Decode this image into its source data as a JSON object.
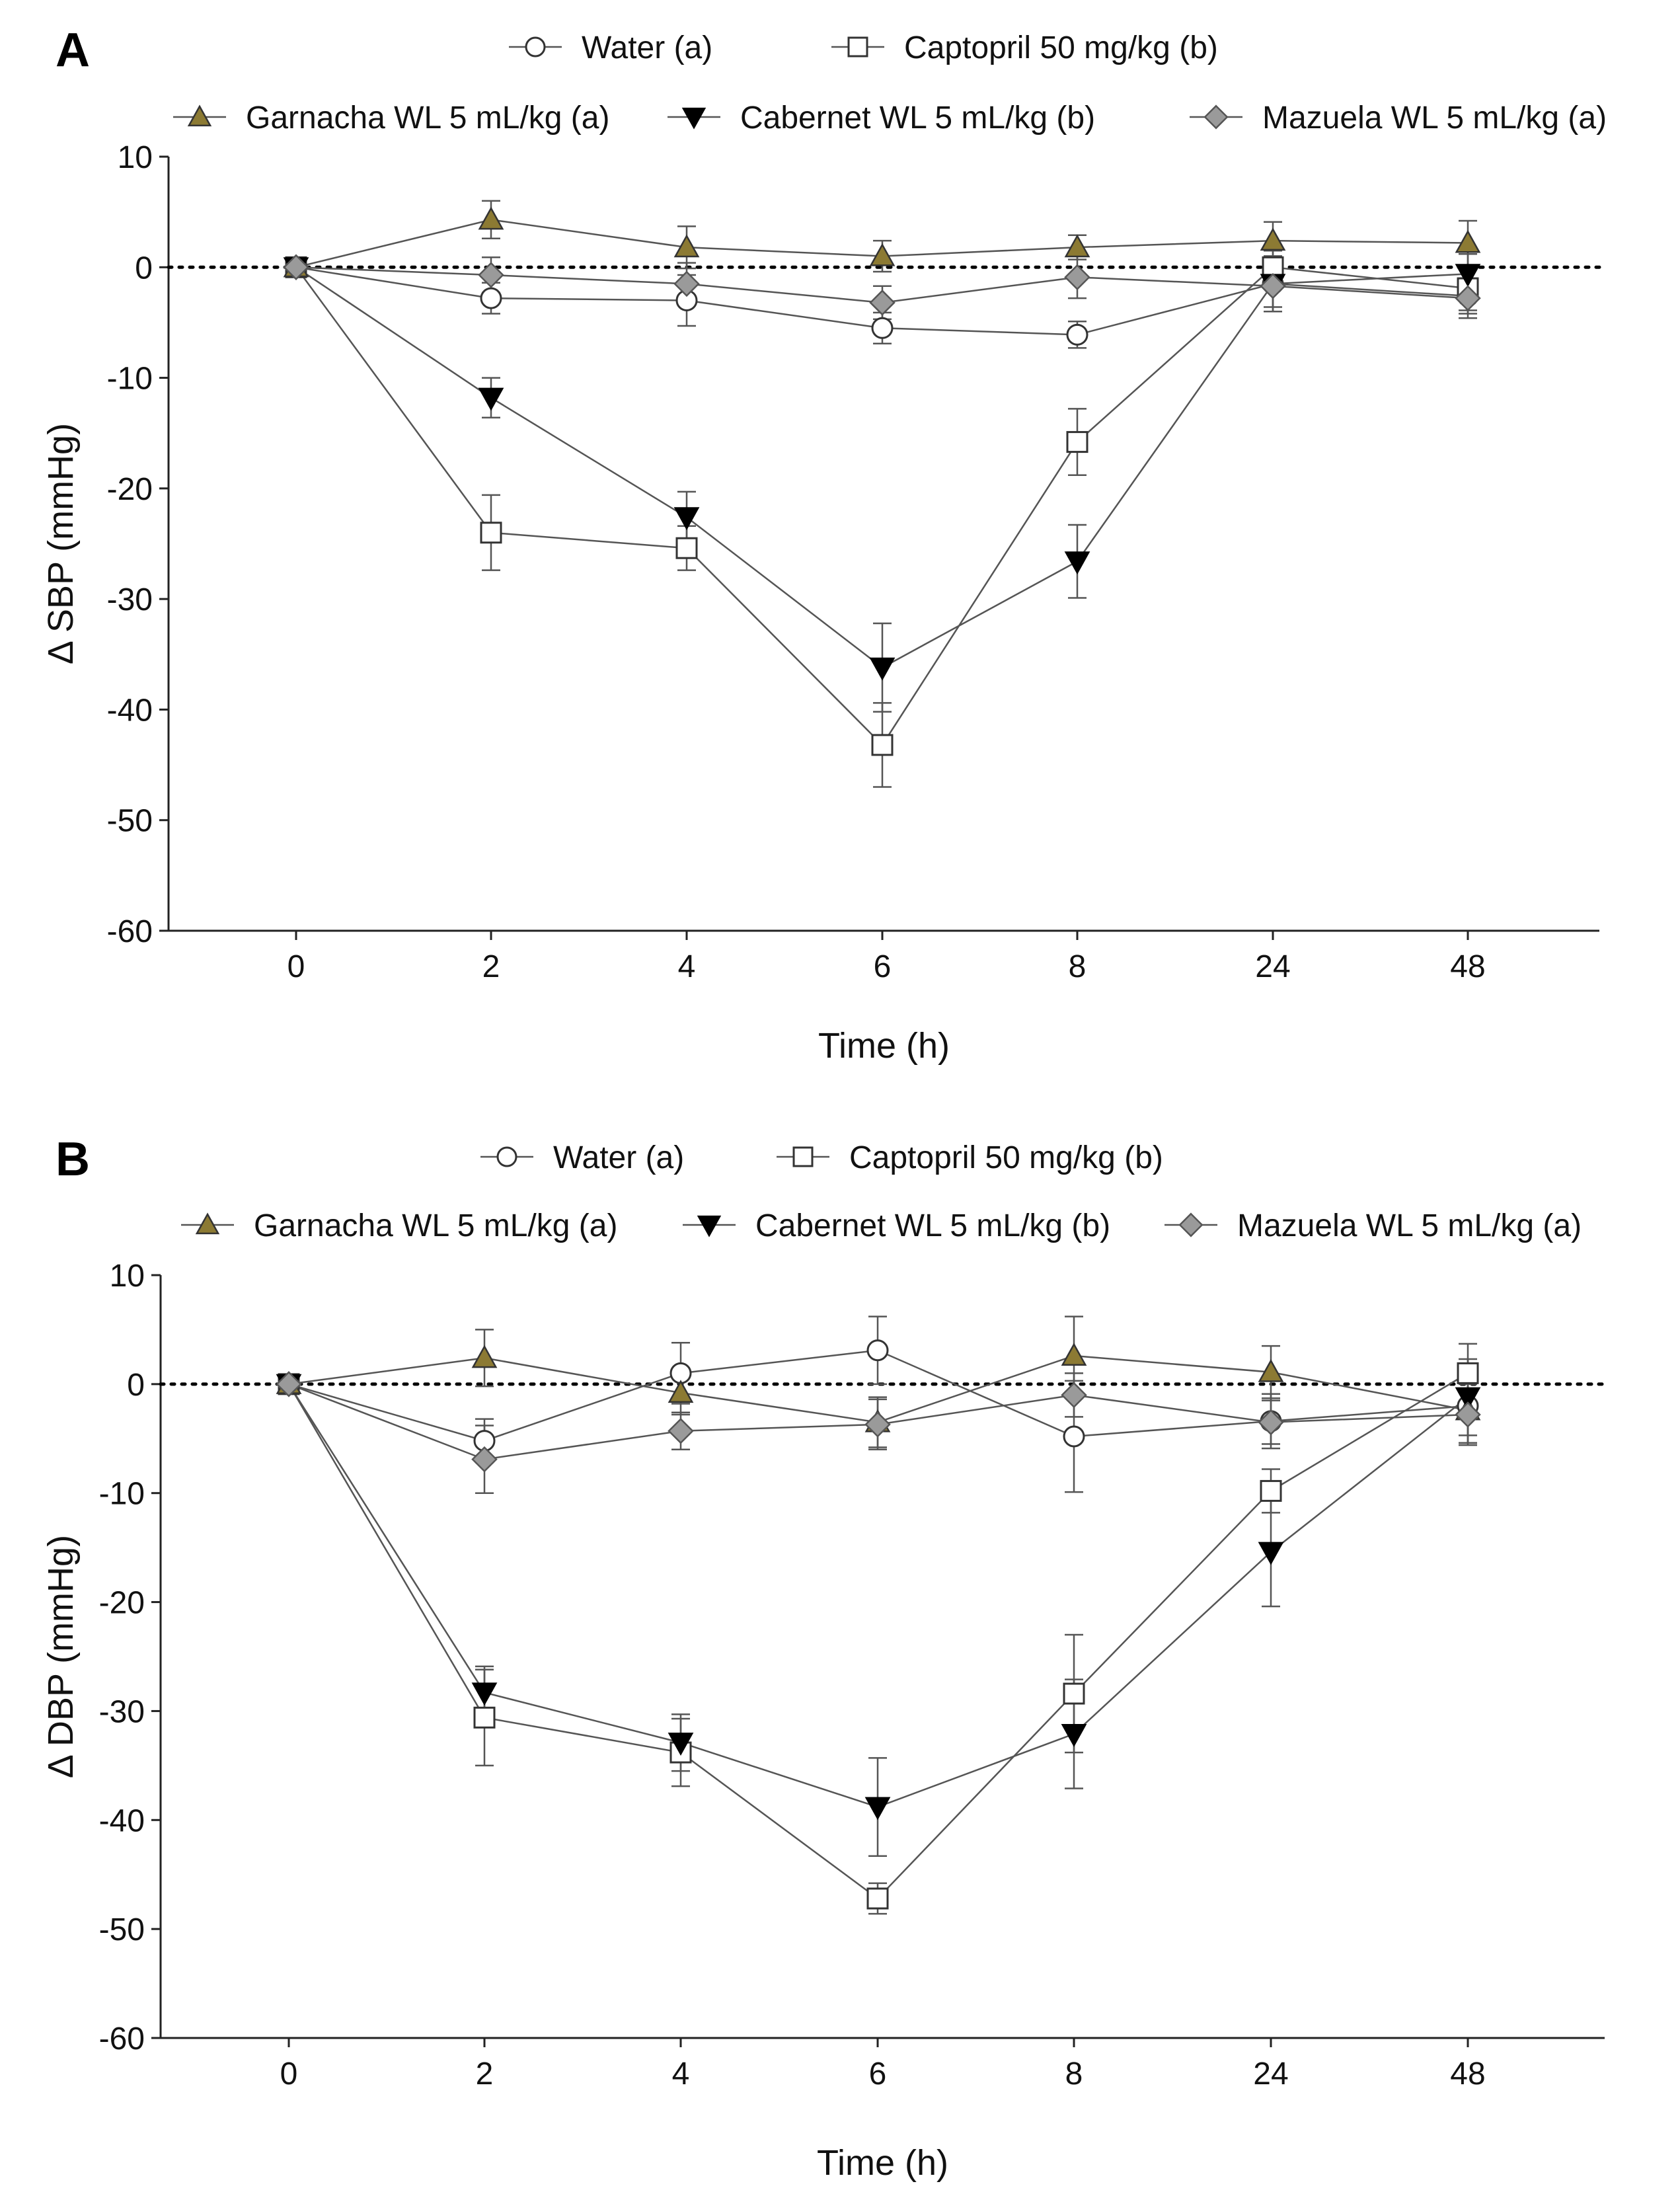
{
  "chart_data": [
    {
      "type": "line",
      "panel_label": "A",
      "title": "",
      "xlabel": "Time (h)",
      "ylabel": "Δ SBP (mmHg)",
      "categories": [
        "0",
        "2",
        "4",
        "6",
        "8",
        "24",
        "48"
      ],
      "ylim": [
        -60,
        10
      ],
      "yticks": [
        10,
        0,
        -10,
        -20,
        -30,
        -40,
        -50,
        -60
      ],
      "ytick_labels": [
        "10",
        "0",
        "-10",
        "-20",
        "-30",
        "-40",
        "-50",
        "-60"
      ],
      "reference_line": 0,
      "grid": false,
      "legend_position": "top",
      "series": [
        {
          "name": "Water (a)",
          "marker": "circle-open",
          "values": [
            0,
            -2.8,
            -3.0,
            -5.5,
            -6.1,
            -1.5,
            -2.6
          ],
          "errors": [
            0.3,
            1.4,
            2.3,
            1.4,
            1.2,
            2.5,
            1.6
          ]
        },
        {
          "name": "Captopril 50 mg/kg (b)",
          "marker": "square-open",
          "values": [
            0,
            -24,
            -25.4,
            -43.2,
            -15.8,
            0,
            -1.9
          ],
          "errors": [
            0.3,
            3.4,
            2.0,
            3.8,
            3.0,
            1.5,
            2.0
          ]
        },
        {
          "name": "Garnacha WL 5 mL/kg (a)",
          "marker": "triangle-up",
          "values": [
            0,
            4.3,
            1.8,
            1.0,
            1.8,
            2.4,
            2.2
          ],
          "errors": [
            0.3,
            1.7,
            1.9,
            1.4,
            1.1,
            1.7,
            2.0
          ]
        },
        {
          "name": "Cabernet WL 5 mL/kg (b)",
          "marker": "triangle-down",
          "values": [
            0,
            -11.8,
            -22.6,
            -36.2,
            -26.6,
            -1.5,
            -0.6
          ],
          "errors": [
            0.3,
            1.8,
            2.3,
            4.0,
            3.3,
            2.5,
            1.8
          ]
        },
        {
          "name": "Mazuela WL 5 mL/kg (a)",
          "marker": "diamond",
          "values": [
            0,
            -0.7,
            -1.5,
            -3.2,
            -0.9,
            -1.7,
            -2.8
          ],
          "errors": [
            0.3,
            1.6,
            1.9,
            1.5,
            1.9,
            1.9,
            1.8
          ]
        }
      ]
    },
    {
      "type": "line",
      "panel_label": "B",
      "title": "",
      "xlabel": "Time (h)",
      "ylabel": "Δ DBP (mmHg)",
      "categories": [
        "0",
        "2",
        "4",
        "6",
        "8",
        "24",
        "48"
      ],
      "ylim": [
        -60,
        10
      ],
      "yticks": [
        10,
        0,
        -10,
        -20,
        -30,
        -40,
        -50,
        -60
      ],
      "ytick_labels": [
        "10",
        "0",
        "-10",
        "-20",
        "-30",
        "-40",
        "-50",
        "-60"
      ],
      "reference_line": 0,
      "grid": false,
      "legend_position": "top",
      "series": [
        {
          "name": "Water (a)",
          "marker": "circle-open",
          "values": [
            0,
            -5.2,
            1.0,
            3.1,
            -4.8,
            -3.4,
            -2.0
          ],
          "errors": [
            0.3,
            2.0,
            2.8,
            3.1,
            5.1,
            2.5,
            3.4
          ]
        },
        {
          "name": "Captopril 50 mg/kg (b)",
          "marker": "square-open",
          "values": [
            0,
            -30.6,
            -33.8,
            -47.2,
            -28.4,
            -9.8,
            1.0
          ],
          "errors": [
            0.3,
            4.4,
            3.1,
            1.4,
            5.4,
            2.0,
            2.7
          ]
        },
        {
          "name": "Garnacha WL 5 mL/kg (a)",
          "marker": "triangle-up",
          "values": [
            0,
            2.4,
            -0.8,
            -3.5,
            2.6,
            1.1,
            -2.4
          ],
          "errors": [
            0.3,
            2.6,
            2.0,
            2.3,
            3.6,
            2.4,
            3.0
          ]
        },
        {
          "name": "Cabernet WL 5 mL/kg (b)",
          "marker": "triangle-down",
          "values": [
            0,
            -28.3,
            -32.9,
            -38.8,
            -32.1,
            -15.4,
            -1.2
          ],
          "errors": [
            0.3,
            2.4,
            2.6,
            4.5,
            5.0,
            5.0,
            3.5
          ]
        },
        {
          "name": "Mazuela WL 5 mL/kg (a)",
          "marker": "diamond",
          "values": [
            0,
            -6.9,
            -4.3,
            -3.7,
            -1.0,
            -3.5,
            -2.8
          ],
          "errors": [
            0.3,
            3.1,
            1.7,
            2.3,
            2.0,
            2.0,
            2.8
          ]
        }
      ]
    }
  ],
  "style": {
    "line_color": "#555555",
    "errorbar_color": "#555555",
    "axis_color": "#222222",
    "series_fill": [
      "#ffffff",
      "#ffffff",
      "#8c7a33",
      "#000000",
      "#9a9a9a"
    ],
    "series_stroke": [
      "#333333",
      "#333333",
      "#333333",
      "#000000",
      "#555555"
    ]
  }
}
